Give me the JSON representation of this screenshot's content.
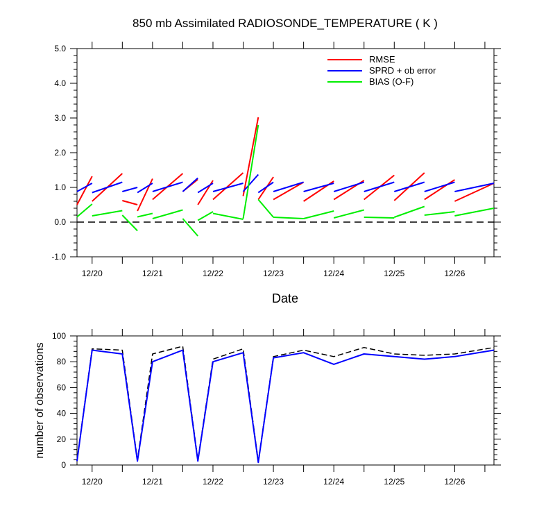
{
  "chart_data": [
    {
      "type": "line",
      "title": "850 mb Assimilated RADIOSONDE_TEMPERATURE ( K )",
      "xlabel": "Date",
      "ylabel": "",
      "ylim": [
        -1.0,
        5.0
      ],
      "yticks": [
        "-1.0",
        "0.0",
        "1.0",
        "2.0",
        "3.0",
        "4.0",
        "5.0"
      ],
      "ytick_values": [
        -1,
        0,
        1,
        2,
        3,
        4,
        5
      ],
      "xlim": [
        0,
        6.9
      ],
      "xtick_labels": [
        "12/20",
        "12/21",
        "12/22",
        "12/23",
        "12/24",
        "12/25",
        "12/26"
      ],
      "xtick_values": [
        0.25,
        1.25,
        2.25,
        3.25,
        4.25,
        5.25,
        6.25
      ],
      "reference_line": {
        "y": 0,
        "style": "dashed",
        "color": "#000000"
      },
      "legend_position": "top-right",
      "series": [
        {
          "name": "RMSE",
          "color": "#ff0000",
          "segments": [
            [
              [
                0,
                0.5
              ],
              [
                0.25,
                1.32
              ]
            ],
            [
              [
                0.25,
                0.6
              ],
              [
                0.75,
                1.4
              ]
            ],
            [
              [
                0.75,
                0.62
              ],
              [
                1.0,
                0.5
              ]
            ],
            [
              [
                1.0,
                0.32
              ],
              [
                1.25,
                1.25
              ]
            ],
            [
              [
                1.25,
                0.65
              ],
              [
                1.75,
                1.4
              ]
            ],
            [
              [
                1.75,
                0.88
              ],
              [
                2.0,
                1.23
              ]
            ],
            [
              [
                2.0,
                0.5
              ],
              [
                2.25,
                1.2
              ]
            ],
            [
              [
                2.25,
                0.65
              ],
              [
                2.75,
                1.42
              ]
            ],
            [
              [
                2.75,
                0.75
              ],
              [
                3.0,
                3.02
              ]
            ],
            [
              [
                3.0,
                0.65
              ],
              [
                3.25,
                1.3
              ]
            ],
            [
              [
                3.25,
                0.65
              ],
              [
                3.75,
                1.15
              ]
            ],
            [
              [
                3.75,
                0.6
              ],
              [
                4.25,
                1.18
              ]
            ],
            [
              [
                4.25,
                0.65
              ],
              [
                4.75,
                1.2
              ]
            ],
            [
              [
                4.75,
                0.65
              ],
              [
                5.25,
                1.35
              ]
            ],
            [
              [
                5.25,
                0.62
              ],
              [
                5.75,
                1.42
              ]
            ],
            [
              [
                5.75,
                0.65
              ],
              [
                6.25,
                1.22
              ]
            ],
            [
              [
                6.25,
                0.6
              ],
              [
                6.9,
                1.12
              ]
            ]
          ]
        },
        {
          "name": "SPRD + ob error",
          "color": "#0000ff",
          "segments": [
            [
              [
                0,
                0.88
              ],
              [
                0.25,
                1.12
              ]
            ],
            [
              [
                0.25,
                0.85
              ],
              [
                0.75,
                1.15
              ]
            ],
            [
              [
                0.75,
                0.88
              ],
              [
                1.0,
                1.0
              ]
            ],
            [
              [
                1.0,
                0.85
              ],
              [
                1.25,
                1.12
              ]
            ],
            [
              [
                1.25,
                0.88
              ],
              [
                1.75,
                1.15
              ]
            ],
            [
              [
                1.75,
                0.88
              ],
              [
                2.0,
                1.27
              ]
            ],
            [
              [
                2.0,
                0.85
              ],
              [
                2.25,
                1.12
              ]
            ],
            [
              [
                2.25,
                0.88
              ],
              [
                2.75,
                1.12
              ]
            ],
            [
              [
                2.75,
                0.88
              ],
              [
                3.0,
                1.37
              ]
            ],
            [
              [
                3.0,
                0.85
              ],
              [
                3.25,
                1.15
              ]
            ],
            [
              [
                3.25,
                0.88
              ],
              [
                3.75,
                1.15
              ]
            ],
            [
              [
                3.75,
                0.88
              ],
              [
                4.25,
                1.12
              ]
            ],
            [
              [
                4.25,
                0.88
              ],
              [
                4.75,
                1.15
              ]
            ],
            [
              [
                4.75,
                0.88
              ],
              [
                5.25,
                1.15
              ]
            ],
            [
              [
                5.25,
                0.88
              ],
              [
                5.75,
                1.15
              ]
            ],
            [
              [
                5.75,
                0.88
              ],
              [
                6.25,
                1.15
              ]
            ],
            [
              [
                6.25,
                0.88
              ],
              [
                6.9,
                1.12
              ]
            ]
          ]
        },
        {
          "name": "BIAS (O-F)",
          "color": "#00ee00",
          "segments": [
            [
              [
                0,
                0.15
              ],
              [
                0.25,
                0.52
              ]
            ],
            [
              [
                0.25,
                0.18
              ],
              [
                0.75,
                0.33
              ]
            ],
            [
              [
                0.75,
                0.2
              ],
              [
                1.0,
                -0.25
              ]
            ],
            [
              [
                1.0,
                0.15
              ],
              [
                1.25,
                0.25
              ]
            ],
            [
              [
                1.25,
                0.1
              ],
              [
                1.75,
                0.35
              ]
            ],
            [
              [
                1.75,
                0.1
              ],
              [
                2.0,
                -0.4
              ]
            ],
            [
              [
                2.0,
                0.05
              ],
              [
                2.25,
                0.3
              ]
            ],
            [
              [
                2.25,
                0.25
              ],
              [
                2.75,
                0.08
              ]
            ],
            [
              [
                2.75,
                0.1
              ],
              [
                3.0,
                2.8
              ]
            ],
            [
              [
                3.0,
                0.65
              ],
              [
                3.25,
                0.14
              ]
            ],
            [
              [
                3.25,
                0.14
              ],
              [
                3.75,
                0.1
              ]
            ],
            [
              [
                3.75,
                0.1
              ],
              [
                4.25,
                0.32
              ]
            ],
            [
              [
                4.25,
                0.12
              ],
              [
                4.75,
                0.35
              ]
            ],
            [
              [
                4.75,
                0.14
              ],
              [
                5.25,
                0.12
              ]
            ],
            [
              [
                5.25,
                0.14
              ],
              [
                5.75,
                0.45
              ]
            ],
            [
              [
                5.75,
                0.2
              ],
              [
                6.25,
                0.3
              ]
            ],
            [
              [
                6.25,
                0.18
              ],
              [
                6.9,
                0.4
              ]
            ]
          ]
        }
      ]
    },
    {
      "type": "line",
      "title": "",
      "xlabel": "",
      "ylabel": "number of observations",
      "ylim": [
        0,
        100
      ],
      "yticks": [
        "0",
        "20",
        "40",
        "60",
        "80",
        "100"
      ],
      "ytick_values": [
        0,
        20,
        40,
        60,
        80,
        100
      ],
      "xlim": [
        0,
        6.9
      ],
      "xtick_labels": [
        "12/20",
        "12/21",
        "12/22",
        "12/23",
        "12/24",
        "12/25",
        "12/26"
      ],
      "xtick_values": [
        0.25,
        1.25,
        2.25,
        3.25,
        4.25,
        5.25,
        6.25
      ],
      "series": [
        {
          "name": "",
          "color": "#000000",
          "style": "dashed",
          "x": [
            0,
            0.25,
            0.75,
            1.0,
            1.25,
            1.75,
            2.0,
            2.25,
            2.75,
            3.0,
            3.25,
            3.75,
            4.25,
            4.75,
            5.25,
            5.75,
            6.25,
            6.9
          ],
          "values": [
            4,
            90,
            89,
            4,
            86,
            92,
            4,
            82,
            90,
            3,
            84,
            89,
            84,
            91,
            86,
            85,
            86,
            91
          ]
        },
        {
          "name": "",
          "color": "#0000ff",
          "style": "solid",
          "x": [
            0,
            0.25,
            0.75,
            1.0,
            1.25,
            1.75,
            2.0,
            2.25,
            2.75,
            3.0,
            3.25,
            3.75,
            4.25,
            4.75,
            5.25,
            5.75,
            6.25,
            6.9
          ],
          "values": [
            3,
            89,
            86,
            3,
            80,
            89,
            3,
            80,
            87,
            2,
            83,
            87,
            78,
            86,
            84,
            82,
            84,
            89
          ]
        }
      ]
    }
  ]
}
